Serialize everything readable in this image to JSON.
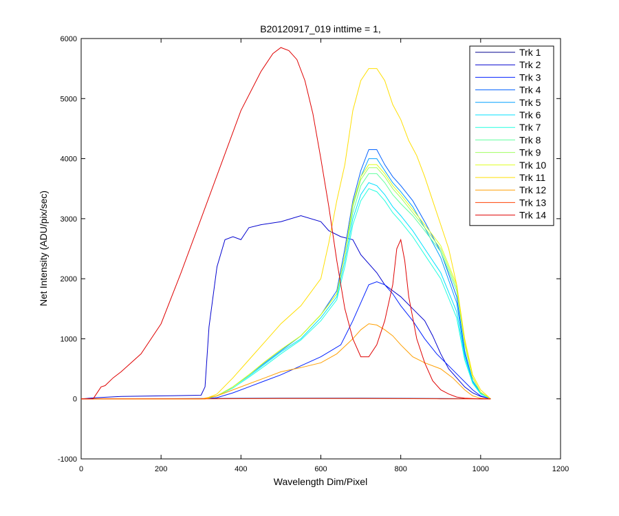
{
  "chart_data": {
    "type": "line",
    "title": "B20120917_019 inttime = 1,",
    "xlabel": "Wavelength Dim/Pixel",
    "ylabel": "Net Intensity (ADU/pix/sec)",
    "xlim": [
      0,
      1200
    ],
    "ylim": [
      -1000,
      6000
    ],
    "xticks": [
      0,
      200,
      400,
      600,
      800,
      1000,
      1200
    ],
    "yticks": [
      -1000,
      0,
      1000,
      2000,
      3000,
      4000,
      5000,
      6000
    ],
    "grid": false,
    "legend_position": "top-right",
    "series": [
      {
        "name": "Trk 1",
        "color": "#00008F",
        "x": [
          0,
          300,
          500,
          700,
          900,
          1025
        ],
        "y": [
          0,
          5,
          10,
          10,
          5,
          0
        ]
      },
      {
        "name": "Trk 2",
        "color": "#0000CF",
        "x": [
          0,
          40,
          100,
          200,
          300,
          310,
          320,
          340,
          360,
          380,
          400,
          420,
          450,
          500,
          550,
          600,
          620,
          650,
          680,
          700,
          720,
          740,
          760,
          780,
          800,
          830,
          860,
          880,
          900,
          920,
          940,
          960,
          980,
          1000,
          1025
        ],
        "y": [
          0,
          20,
          40,
          50,
          60,
          200,
          1200,
          2200,
          2650,
          2700,
          2650,
          2850,
          2900,
          2950,
          3050,
          2950,
          2800,
          2700,
          2650,
          2400,
          2250,
          2100,
          1900,
          1800,
          1700,
          1500,
          1300,
          1050,
          750,
          500,
          350,
          200,
          100,
          40,
          0
        ]
      },
      {
        "name": "Trk 3",
        "color": "#0020FF",
        "x": [
          0,
          300,
          340,
          380,
          420,
          460,
          500,
          550,
          600,
          650,
          680,
          700,
          720,
          740,
          760,
          780,
          800,
          830,
          860,
          890,
          920,
          950,
          980,
          1000,
          1025
        ],
        "y": [
          0,
          0,
          20,
          100,
          200,
          300,
          400,
          550,
          700,
          900,
          1300,
          1600,
          1900,
          1950,
          1900,
          1750,
          1550,
          1300,
          1000,
          750,
          550,
          350,
          150,
          50,
          0
        ]
      },
      {
        "name": "Trk 4",
        "color": "#0060FF",
        "x": [
          0,
          310,
          340,
          380,
          420,
          460,
          500,
          550,
          600,
          640,
          660,
          680,
          700,
          720,
          740,
          760,
          780,
          800,
          830,
          860,
          900,
          940,
          960,
          980,
          1000,
          1025
        ],
        "y": [
          0,
          0,
          50,
          200,
          400,
          600,
          800,
          1050,
          1400,
          1800,
          2500,
          3300,
          3800,
          4150,
          4150,
          3900,
          3700,
          3550,
          3300,
          2950,
          2450,
          1700,
          800,
          300,
          100,
          0
        ]
      },
      {
        "name": "Trk 5",
        "color": "#00A0FF",
        "x": [
          0,
          310,
          340,
          380,
          420,
          460,
          500,
          550,
          600,
          640,
          660,
          680,
          700,
          720,
          740,
          760,
          780,
          800,
          830,
          860,
          900,
          940,
          960,
          980,
          1000,
          1025
        ],
        "y": [
          0,
          0,
          50,
          200,
          400,
          600,
          800,
          1050,
          1400,
          1750,
          2400,
          3200,
          3700,
          4000,
          4000,
          3800,
          3600,
          3450,
          3200,
          2850,
          2350,
          1600,
          750,
          300,
          100,
          0
        ]
      },
      {
        "name": "Trk 6",
        "color": "#00E0FF",
        "x": [
          0,
          310,
          340,
          380,
          420,
          460,
          500,
          550,
          600,
          640,
          660,
          680,
          700,
          720,
          740,
          760,
          780,
          800,
          830,
          860,
          900,
          940,
          960,
          980,
          1000,
          1025
        ],
        "y": [
          0,
          0,
          50,
          200,
          380,
          580,
          780,
          1000,
          1350,
          1700,
          2300,
          3000,
          3400,
          3600,
          3550,
          3400,
          3200,
          3050,
          2800,
          2500,
          2100,
          1450,
          700,
          280,
          90,
          0
        ]
      },
      {
        "name": "Trk 7",
        "color": "#20FFDF",
        "x": [
          0,
          310,
          340,
          380,
          420,
          460,
          500,
          550,
          600,
          640,
          660,
          680,
          700,
          720,
          740,
          760,
          780,
          800,
          830,
          860,
          900,
          940,
          960,
          980,
          1000,
          1025
        ],
        "y": [
          0,
          0,
          50,
          180,
          360,
          550,
          750,
          980,
          1300,
          1650,
          2200,
          2900,
          3300,
          3500,
          3450,
          3300,
          3100,
          2950,
          2700,
          2400,
          2000,
          1350,
          650,
          260,
          80,
          0
        ]
      },
      {
        "name": "Trk 8",
        "color": "#60FF9F",
        "x": [
          0,
          310,
          340,
          380,
          420,
          460,
          500,
          550,
          600,
          640,
          660,
          680,
          700,
          720,
          740,
          760,
          780,
          800,
          830,
          860,
          900,
          940,
          960,
          980,
          1000,
          1025
        ],
        "y": [
          0,
          0,
          50,
          200,
          400,
          620,
          820,
          1050,
          1400,
          1750,
          2400,
          3100,
          3550,
          3750,
          3750,
          3600,
          3400,
          3250,
          3050,
          2800,
          2450,
          1800,
          900,
          350,
          110,
          0
        ]
      },
      {
        "name": "Trk 9",
        "color": "#A0FF5F",
        "x": [
          0,
          310,
          340,
          380,
          420,
          460,
          500,
          550,
          600,
          640,
          660,
          680,
          700,
          720,
          740,
          760,
          780,
          800,
          830,
          860,
          900,
          940,
          960,
          980,
          1000,
          1025
        ],
        "y": [
          0,
          0,
          50,
          200,
          400,
          620,
          820,
          1050,
          1400,
          1750,
          2400,
          3200,
          3650,
          3850,
          3850,
          3700,
          3500,
          3350,
          3100,
          2850,
          2500,
          1850,
          950,
          360,
          110,
          0
        ]
      },
      {
        "name": "Trk 10",
        "color": "#E0FF1F",
        "x": [
          0,
          310,
          340,
          380,
          420,
          460,
          500,
          550,
          600,
          640,
          660,
          680,
          700,
          720,
          740,
          760,
          780,
          800,
          830,
          860,
          900,
          940,
          960,
          980,
          1000,
          1025
        ],
        "y": [
          0,
          0,
          50,
          200,
          400,
          620,
          820,
          1050,
          1400,
          1750,
          2400,
          3250,
          3700,
          3900,
          3900,
          3750,
          3550,
          3400,
          3150,
          2900,
          2550,
          1900,
          950,
          360,
          110,
          0
        ]
      },
      {
        "name": "Trk 11",
        "color": "#FFDF00",
        "x": [
          0,
          310,
          340,
          380,
          420,
          460,
          500,
          550,
          600,
          620,
          640,
          660,
          680,
          700,
          720,
          740,
          760,
          780,
          800,
          820,
          840,
          860,
          880,
          900,
          920,
          940,
          960,
          980,
          1000,
          1025
        ],
        "y": [
          0,
          0,
          80,
          350,
          650,
          950,
          1250,
          1550,
          2000,
          2600,
          3300,
          3900,
          4800,
          5300,
          5500,
          5500,
          5300,
          4900,
          4650,
          4300,
          4050,
          3700,
          3300,
          2900,
          2500,
          1900,
          1000,
          400,
          150,
          0
        ]
      },
      {
        "name": "Trk 12",
        "color": "#FF9F00",
        "x": [
          0,
          300,
          340,
          380,
          420,
          460,
          500,
          550,
          600,
          640,
          680,
          700,
          720,
          740,
          760,
          780,
          800,
          830,
          860,
          900,
          930,
          960,
          980,
          1000,
          1025
        ],
        "y": [
          0,
          0,
          50,
          150,
          250,
          350,
          450,
          520,
          600,
          750,
          1000,
          1150,
          1250,
          1230,
          1150,
          1050,
          900,
          700,
          600,
          500,
          350,
          150,
          50,
          10,
          0
        ]
      },
      {
        "name": "Trk 13",
        "color": "#FF3F00",
        "x": [
          0,
          300,
          500,
          700,
          900,
          1025
        ],
        "y": [
          0,
          0,
          5,
          5,
          0,
          0
        ]
      },
      {
        "name": "Trk 14",
        "color": "#DF0000",
        "x": [
          0,
          30,
          50,
          60,
          80,
          100,
          150,
          200,
          250,
          300,
          350,
          400,
          450,
          480,
          500,
          520,
          540,
          560,
          580,
          600,
          620,
          640,
          660,
          680,
          700,
          720,
          740,
          760,
          780,
          790,
          800,
          810,
          820,
          840,
          860,
          880,
          900,
          920,
          940,
          960,
          980,
          1000,
          1025
        ],
        "y": [
          0,
          0,
          200,
          220,
          350,
          450,
          750,
          1250,
          2100,
          3000,
          3900,
          4800,
          5450,
          5750,
          5850,
          5800,
          5650,
          5300,
          4750,
          4000,
          3200,
          2300,
          1500,
          1000,
          700,
          700,
          900,
          1300,
          1900,
          2500,
          2650,
          2300,
          1700,
          1000,
          600,
          300,
          150,
          80,
          30,
          10,
          5,
          0,
          0
        ]
      }
    ]
  }
}
